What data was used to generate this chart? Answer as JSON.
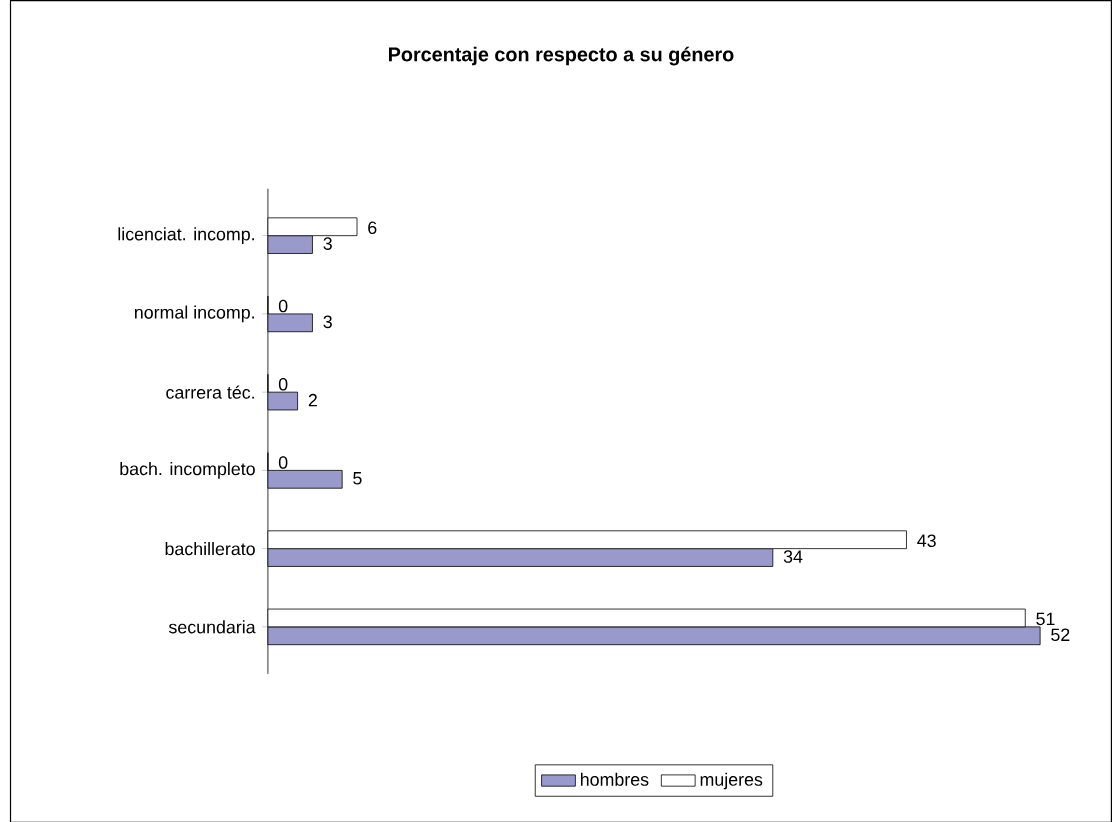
{
  "chart_data": {
    "type": "bar",
    "orientation": "horizontal",
    "title": "Porcentaje con respecto a su género",
    "categories": [
      "licenciat. incomp.",
      "normal incomp.",
      "carrera téc.",
      "bach. incompleto",
      "bachillerato",
      "secundaria"
    ],
    "series": [
      {
        "name": "hombres",
        "color": "#9999cc",
        "values": [
          3,
          3,
          2,
          5,
          34,
          52
        ]
      },
      {
        "name": "mujeres",
        "color": "#ffffff",
        "values": [
          6,
          0,
          0,
          0,
          43,
          51
        ]
      }
    ],
    "data_labels": true,
    "legend": "bottom"
  }
}
